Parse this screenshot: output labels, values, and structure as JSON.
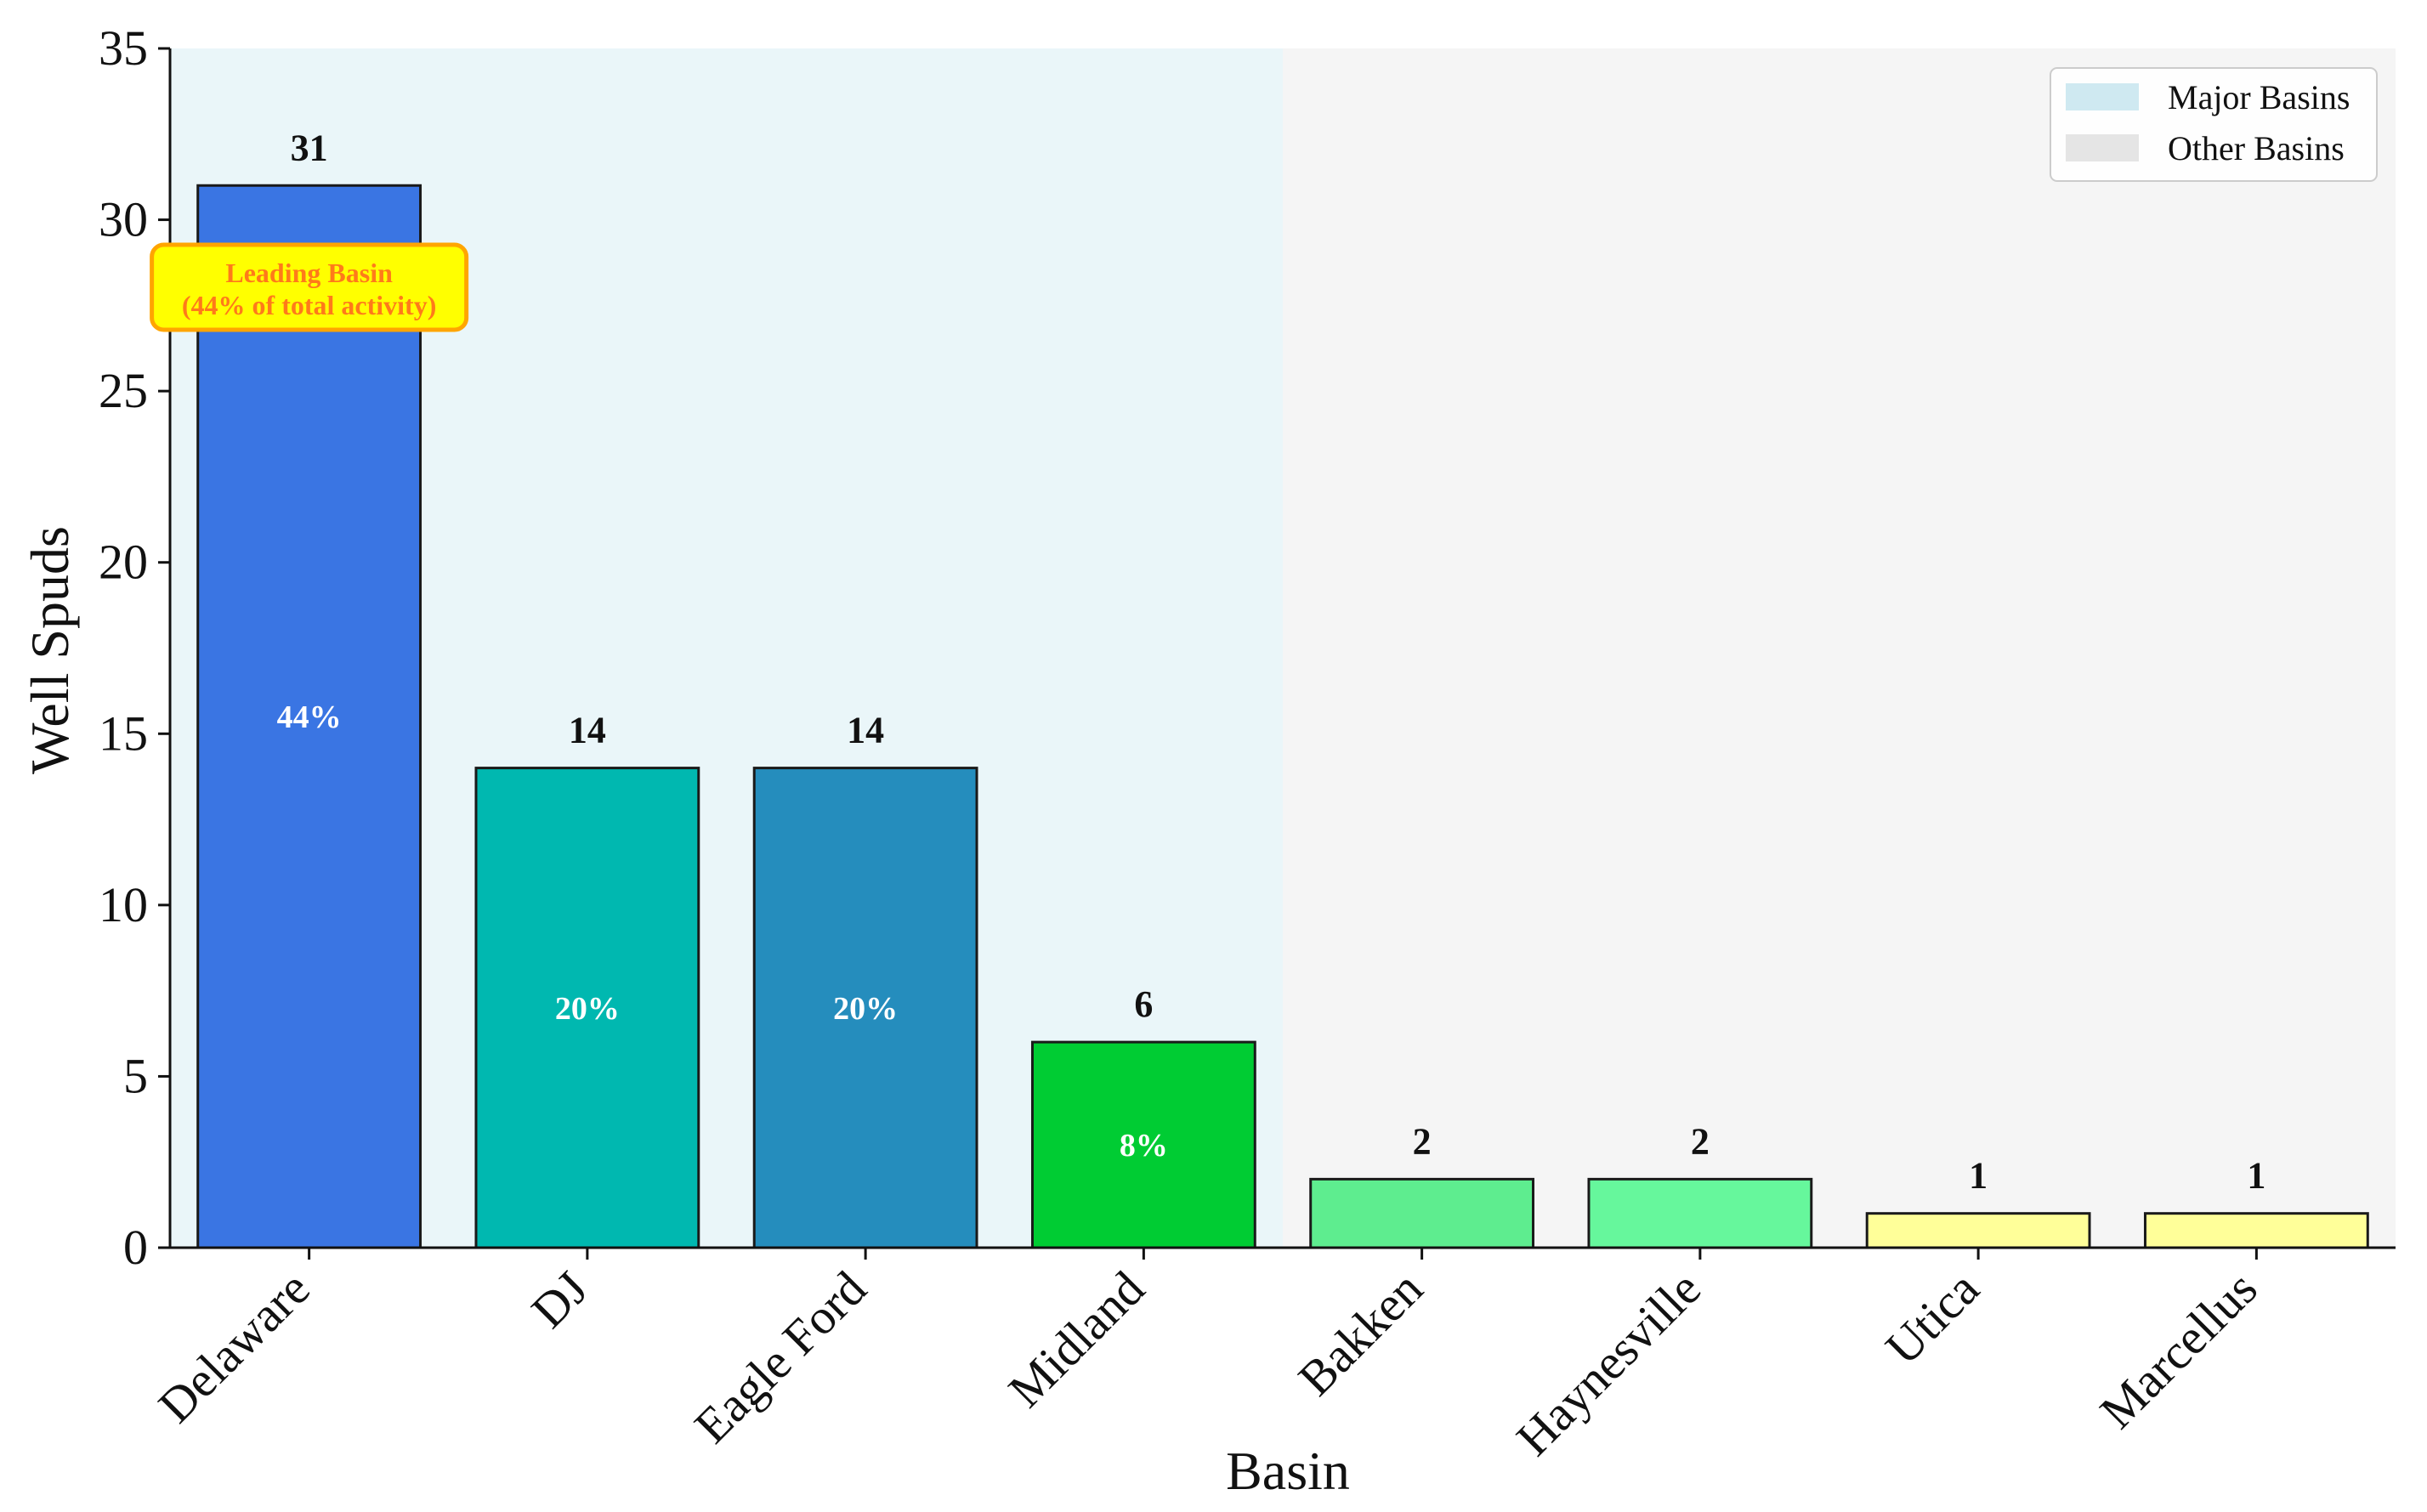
{
  "chart_data": {
    "type": "bar",
    "title": "",
    "xlabel": "Basin",
    "ylabel": "Well Spuds",
    "ylim": [
      0,
      35
    ],
    "yticks": [
      0,
      5,
      10,
      15,
      20,
      25,
      30,
      35
    ],
    "grid": false,
    "categories": [
      "Delaware",
      "DJ",
      "Eagle Ford",
      "Midland",
      "Bakken",
      "Haynesville",
      "Utica",
      "Marcellus"
    ],
    "values": [
      31,
      14,
      14,
      6,
      2,
      2,
      1,
      1
    ],
    "value_labels": [
      "31",
      "14",
      "14",
      "6",
      "2",
      "2",
      "1",
      "1"
    ],
    "percent_labels": [
      "44%",
      "20%",
      "20%",
      "8%",
      "",
      "",
      "",
      ""
    ],
    "bar_colors": [
      "#3a75e3",
      "#00b8b0",
      "#258dbd",
      "#00cc33",
      "#5eed8f",
      "#66f79c",
      "#ffff99",
      "#ffff99"
    ],
    "regions": [
      {
        "label": "Major Basins",
        "color": "#eaf6f9",
        "legend_color": "#cfe9f1",
        "categories": [
          "Delaware",
          "DJ",
          "Eagle Ford",
          "Midland"
        ]
      },
      {
        "label": "Other Basins",
        "color": "#f5f5f5",
        "legend_color": "#e5e5e5",
        "categories": [
          "Bakken",
          "Haynesville",
          "Utica",
          "Marcellus"
        ]
      }
    ],
    "legend": {
      "position": "top-right",
      "entries": [
        "Major Basins",
        "Other Basins"
      ]
    },
    "annotation": {
      "category": "Delaware",
      "line1": "Leading Basin",
      "line2": "(44% of total activity)",
      "fill": "#ffff00",
      "border": "#ffa500",
      "text_color": "#ff7a1a"
    }
  }
}
